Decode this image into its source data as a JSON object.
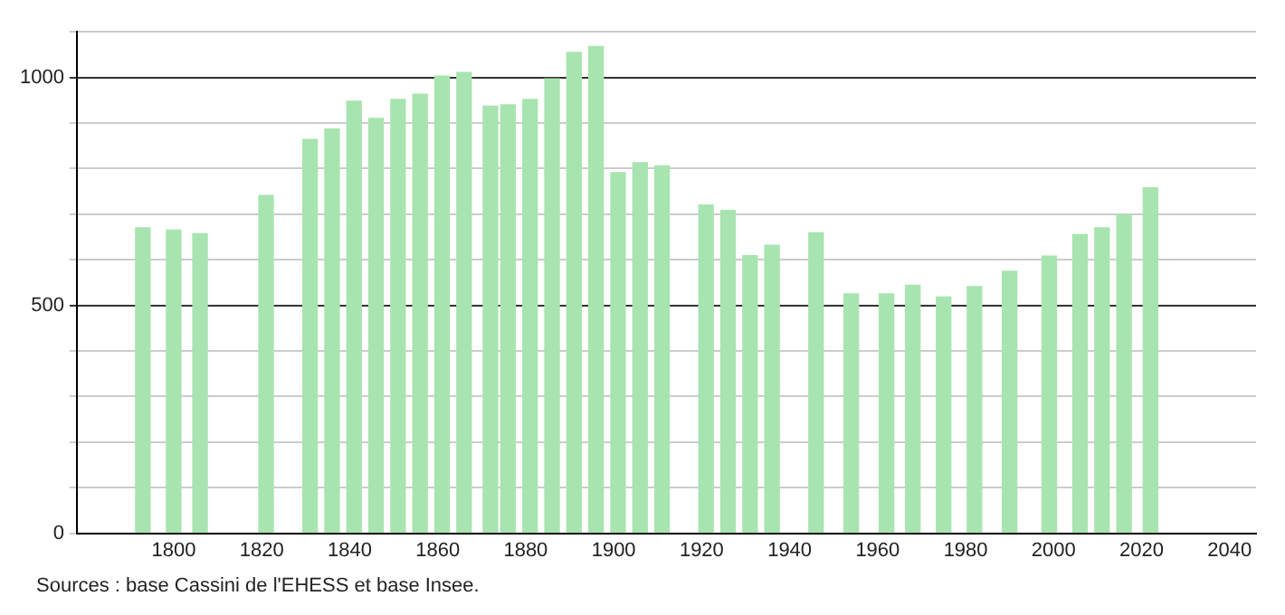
{
  "chart_data": {
    "type": "bar",
    "x": [
      1793,
      1800,
      1806,
      1821,
      1831,
      1836,
      1841,
      1846,
      1851,
      1856,
      1861,
      1866,
      1872,
      1876,
      1881,
      1886,
      1891,
      1896,
      1901,
      1906,
      1911,
      1921,
      1926,
      1931,
      1936,
      1946,
      1954,
      1962,
      1968,
      1975,
      1982,
      1990,
      1999,
      2006,
      2011,
      2016,
      2022
    ],
    "values": [
      670,
      665,
      657,
      741,
      864,
      887,
      948,
      910,
      952,
      963,
      1003,
      1011,
      937,
      940,
      952,
      997,
      1055,
      1068,
      791,
      813,
      806,
      720,
      708,
      609,
      632,
      659,
      525,
      525,
      544,
      518,
      541,
      575,
      608,
      655,
      670,
      699,
      758
    ],
    "color": "#a8e4b0",
    "xlim": [
      1778,
      2046
    ],
    "xticks": [
      1800,
      1820,
      1840,
      1860,
      1880,
      1900,
      1920,
      1940,
      1960,
      1980,
      2000,
      2020,
      2040
    ],
    "ylim": [
      0,
      1100
    ],
    "yticks": [
      0,
      {
        "value": 100,
        "label": null
      },
      {
        "value": 200,
        "label": null
      },
      {
        "value": 300,
        "label": null
      },
      {
        "value": 400,
        "label": null
      },
      500,
      {
        "value": 600,
        "label": null
      },
      {
        "value": 700,
        "label": null
      },
      {
        "value": 800,
        "label": null
      },
      {
        "value": 900,
        "label": null
      },
      1000,
      {
        "value": 1100,
        "label": null
      }
    ],
    "grid": "y",
    "legend": false,
    "annotations": [
      "Sources : base Cassini de l'EHESS et base Insee."
    ]
  }
}
